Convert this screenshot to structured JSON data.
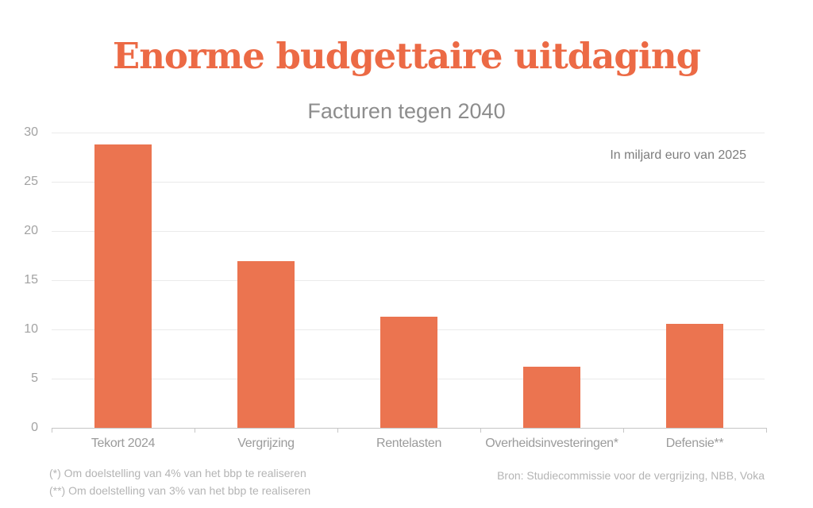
{
  "chart_data": {
    "type": "bar",
    "title": "Enorme budgettaire uitdaging",
    "subtitle": "Facturen tegen 2040",
    "unit_label": "In miljard euro van 2025",
    "categories": [
      "Tekort 2024",
      "Vergrijzing",
      "Rentelasten",
      "Overheidsinvesteringen*",
      "Defensie**"
    ],
    "values": [
      28.8,
      16.9,
      11.3,
      6.2,
      10.6
    ],
    "xlabel": "",
    "ylabel": "",
    "ylim": [
      0,
      30
    ],
    "yticks": [
      0,
      5,
      10,
      15,
      20,
      25,
      30
    ],
    "grid": "horizontal-only",
    "legend": "none",
    "bar_color": "#EB7450",
    "title_color": "#EC6A45",
    "footnotes": [
      "(*) Om doelstelling van 4% van het bbp te realiseren",
      "(**) Om doelstelling van 3% van het bbp te realiseren"
    ],
    "source": "Bron: Studiecommissie voor de vergrijzing, NBB, Voka"
  }
}
